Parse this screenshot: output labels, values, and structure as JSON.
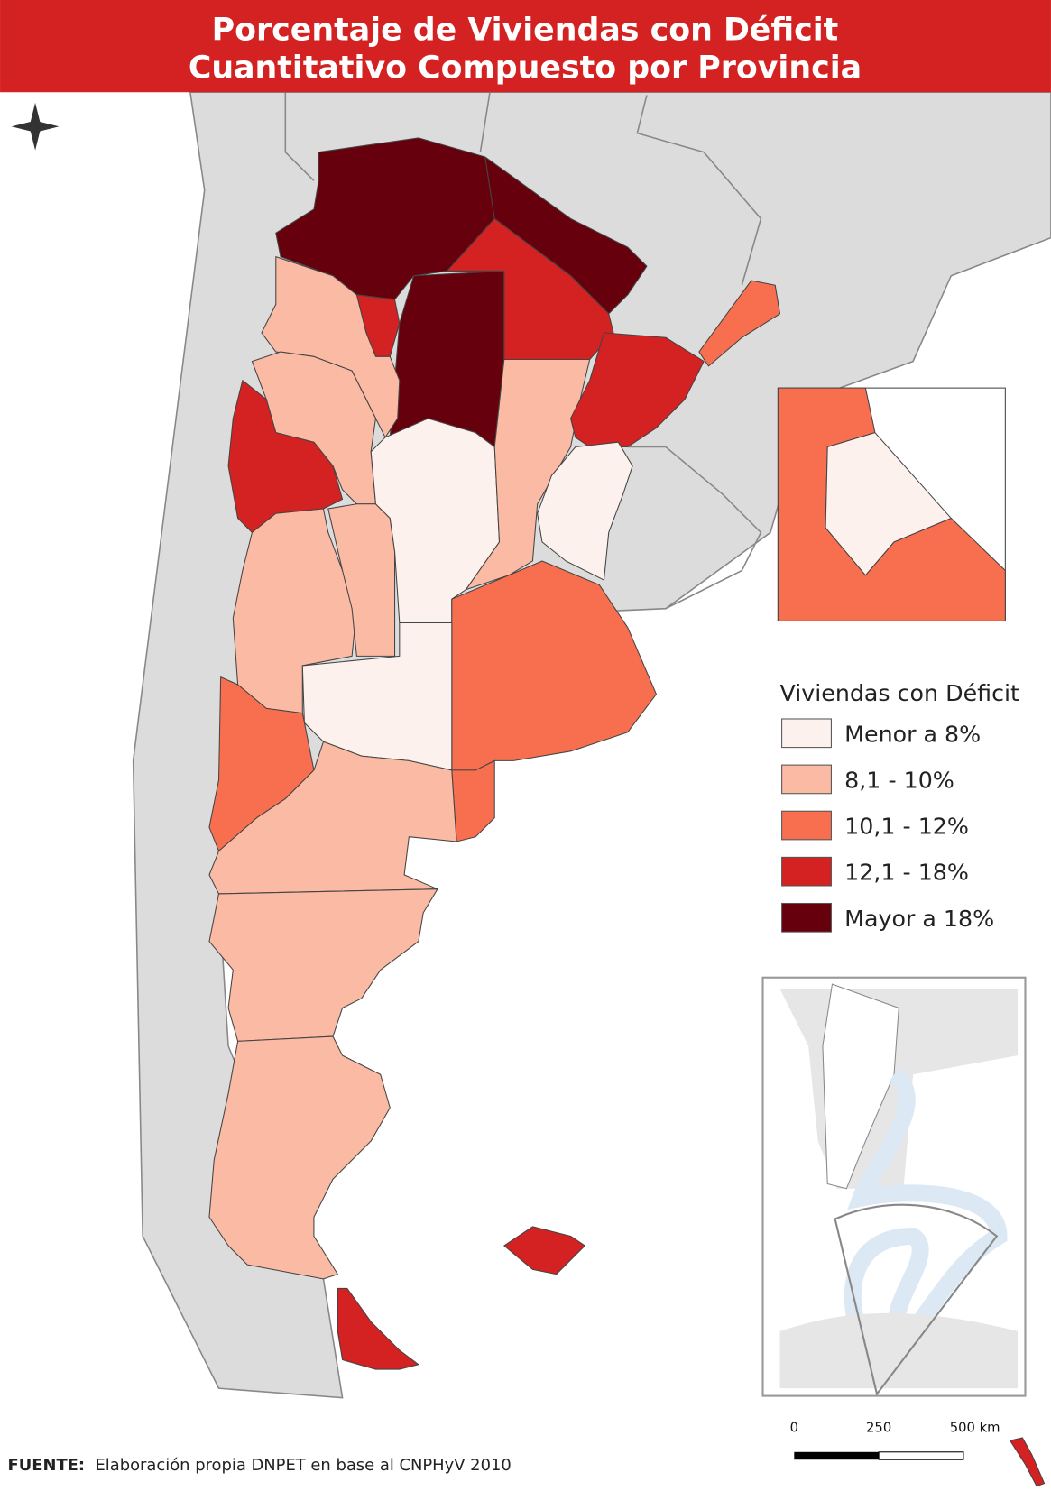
{
  "header": {
    "title_lines": [
      "Porcentaje de Viviendas con Déficit",
      "Cuantitativo Compuesto por Provincia"
    ]
  },
  "legend": {
    "title": "Viviendas con Déficit",
    "items": [
      {
        "label": "Menor a 8%",
        "color": "#fdf1ee"
      },
      {
        "label": "8,1 - 10%",
        "color": "#fbbaa3"
      },
      {
        "label": "10,1 - 12%",
        "color": "#f86f50"
      },
      {
        "label": "12,1 - 18%",
        "color": "#d42121"
      },
      {
        "label": "Mayor a 18%",
        "color": "#67000d"
      }
    ]
  },
  "scale_bar": {
    "labels": [
      "0",
      "250",
      "500 km"
    ]
  },
  "source": {
    "label": "FUENTE:",
    "text": "Elaboración propia DNPET en base al CNPHyV 2010"
  }
}
